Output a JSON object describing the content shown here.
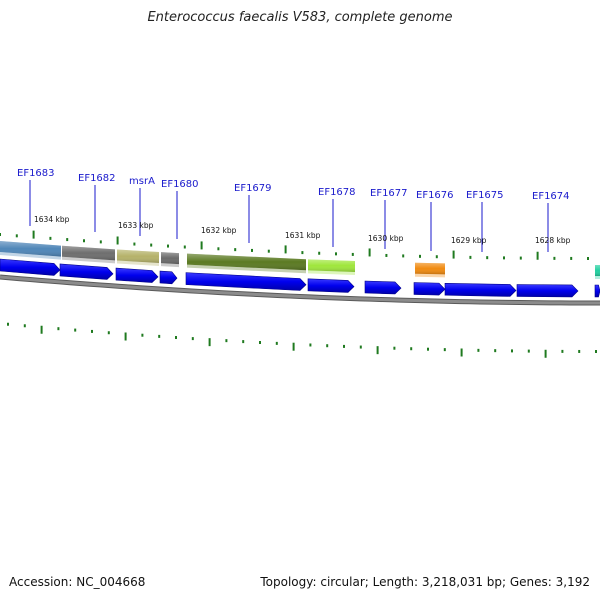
{
  "title": "Enterococcus faecalis V583, complete genome",
  "footer": {
    "accession": "Accession: NC_004668",
    "topology": "Topology: circular; Length: 3,218,031 bp; Genes: 3,192"
  },
  "gene_labels": [
    "EF1683",
    "EF1682",
    "msrA",
    "EF1680",
    "EF1679",
    "EF1678",
    "EF1677",
    "EF1676",
    "EF1675",
    "EF1674"
  ],
  "kbp_labels": [
    "1634 kbp",
    "1633 kbp",
    "1632 kbp",
    "1631 kbp",
    "1630 kbp",
    "1629 kbp",
    "1628 kbp"
  ],
  "colors": {
    "gene_label": "#1a1acc",
    "tick": "#1f7a1f",
    "backbone": "#8c8c8c",
    "cds_arrow": "#0000ee"
  },
  "cog_blocks": [
    {
      "name": "cog-block-ef1683",
      "color": "#4f86b8"
    },
    {
      "name": "cog-block-ef1682",
      "color": "#6e6e6e"
    },
    {
      "name": "cog-block-msra",
      "color": "#b5b26a"
    },
    {
      "name": "cog-block-ef1680",
      "color": "#6b6b6b"
    },
    {
      "name": "cog-block-ef1679",
      "color": "#5b7a22"
    },
    {
      "name": "cog-block-ef1678",
      "color": "#9fe63c"
    },
    {
      "name": "cog-block-ef1676",
      "color": "#f08a10"
    },
    {
      "name": "cog-block-ef1674",
      "color": "#22d0a0"
    }
  ]
}
